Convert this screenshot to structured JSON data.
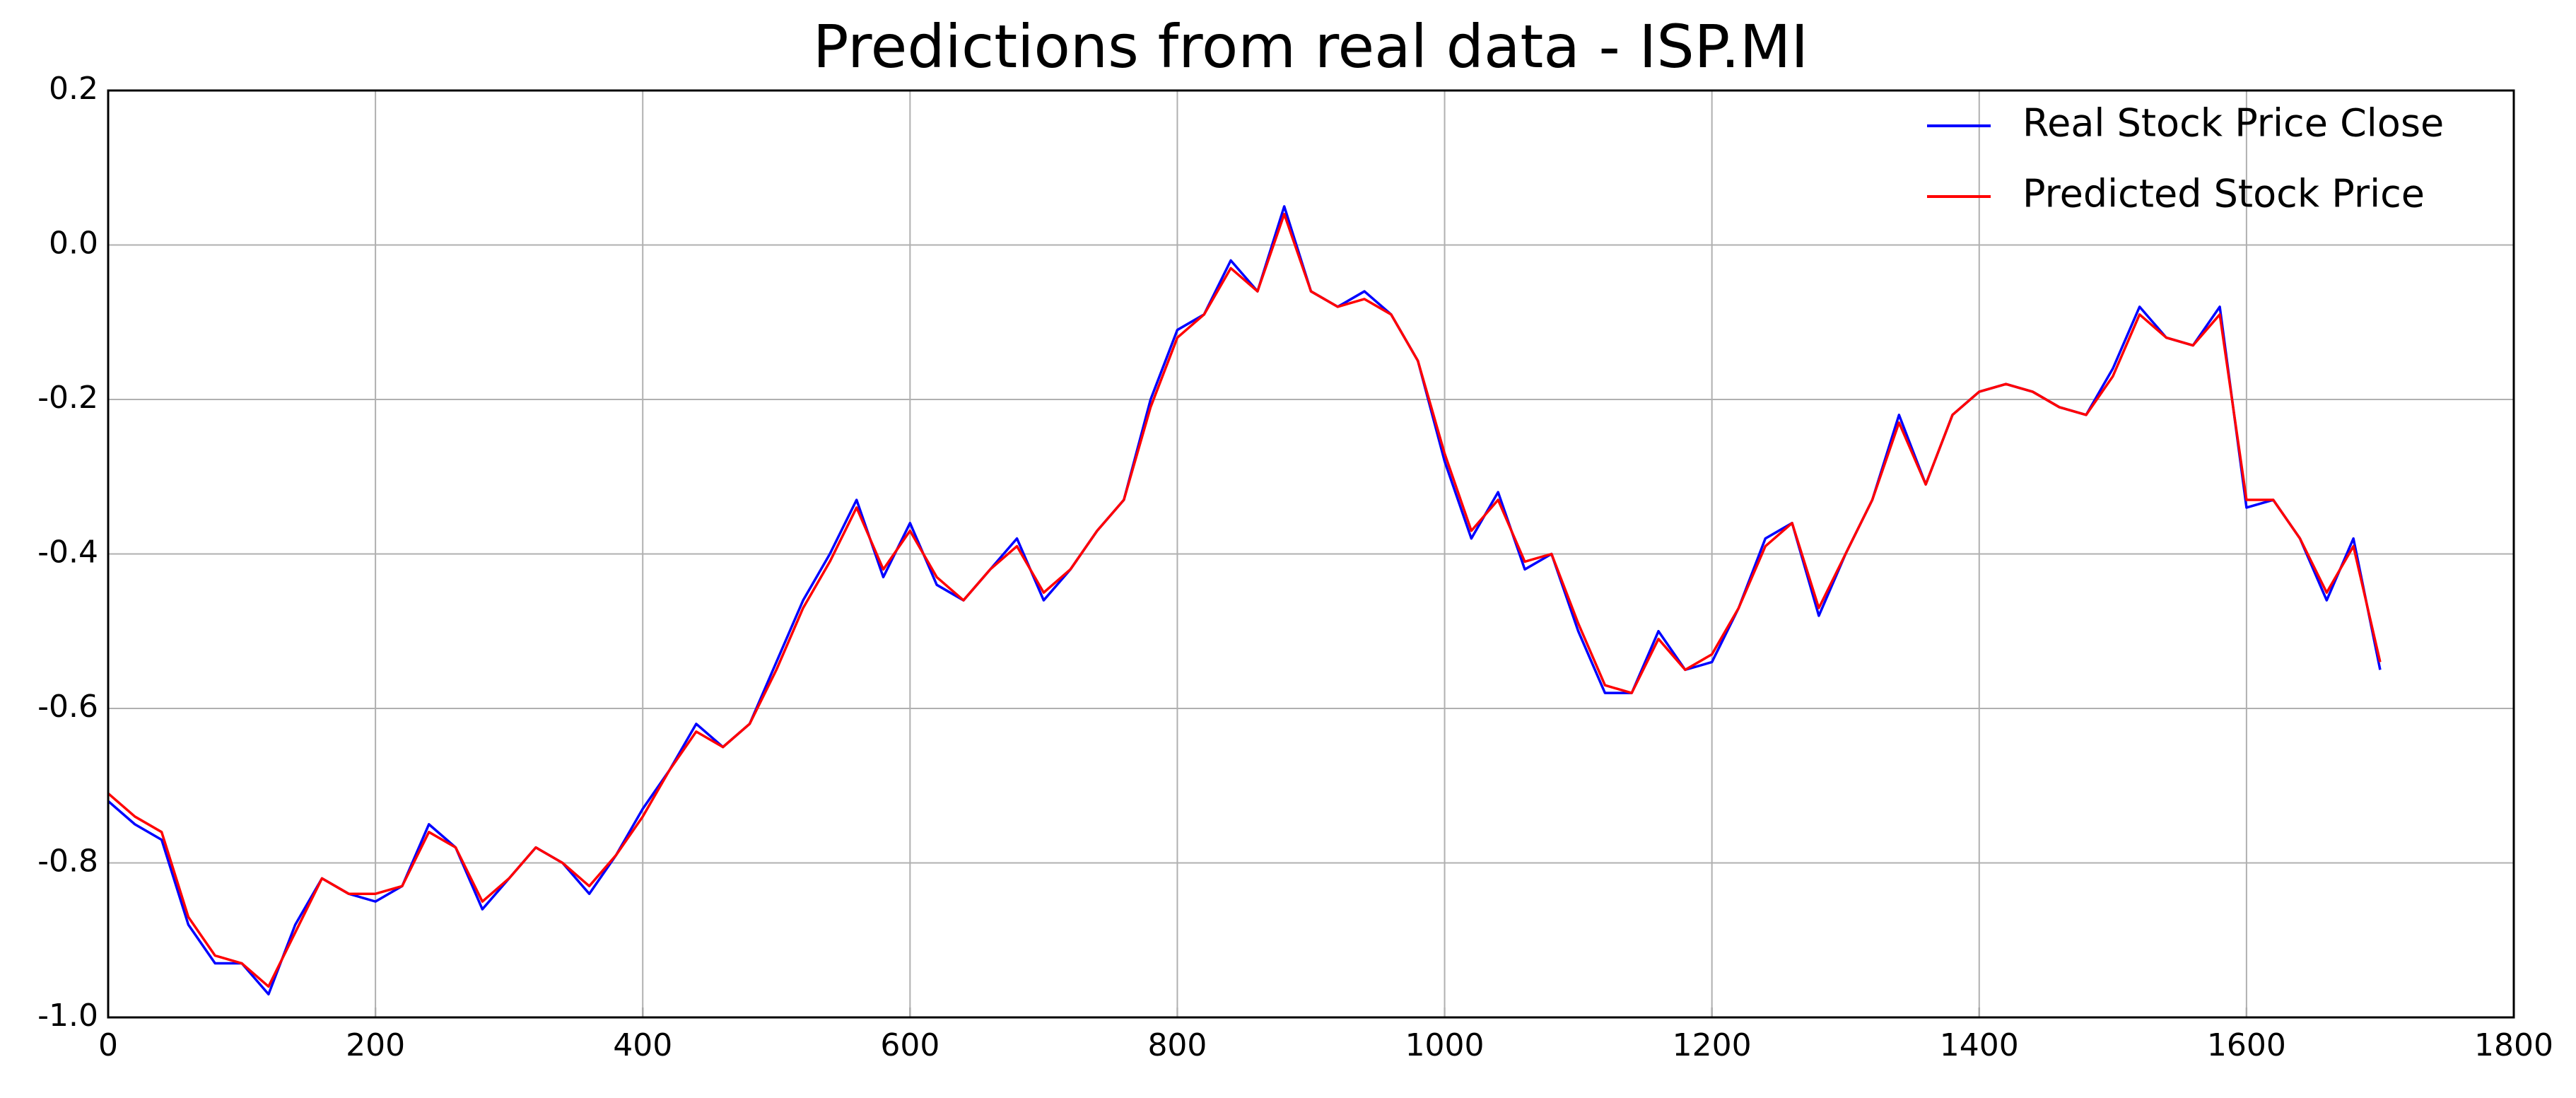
{
  "chart_data": {
    "type": "line",
    "title": "Predictions from real data - ISP.MI",
    "x": [
      0,
      20,
      40,
      60,
      80,
      100,
      120,
      140,
      160,
      180,
      200,
      220,
      240,
      260,
      280,
      300,
      320,
      340,
      360,
      380,
      400,
      420,
      440,
      460,
      480,
      500,
      520,
      540,
      560,
      580,
      600,
      620,
      640,
      660,
      680,
      700,
      720,
      740,
      760,
      780,
      800,
      820,
      840,
      860,
      880,
      900,
      920,
      940,
      960,
      980,
      1000,
      1020,
      1040,
      1060,
      1080,
      1100,
      1120,
      1140,
      1160,
      1180,
      1200,
      1220,
      1240,
      1260,
      1280,
      1300,
      1320,
      1340,
      1360,
      1380,
      1400,
      1420,
      1440,
      1460,
      1480,
      1500,
      1520,
      1540,
      1560,
      1580,
      1600,
      1620,
      1640,
      1660,
      1680,
      1700
    ],
    "series": [
      {
        "name": "Real Stock Price Close",
        "color": "#0000ff",
        "values": [
          -0.72,
          -0.75,
          -0.77,
          -0.88,
          -0.93,
          -0.93,
          -0.97,
          -0.88,
          -0.82,
          -0.84,
          -0.85,
          -0.83,
          -0.75,
          -0.78,
          -0.86,
          -0.82,
          -0.78,
          -0.8,
          -0.84,
          -0.79,
          -0.73,
          -0.68,
          -0.62,
          -0.65,
          -0.62,
          -0.54,
          -0.46,
          -0.4,
          -0.33,
          -0.43,
          -0.36,
          -0.44,
          -0.46,
          -0.42,
          -0.38,
          -0.46,
          -0.42,
          -0.37,
          -0.33,
          -0.2,
          -0.11,
          -0.09,
          -0.02,
          -0.06,
          0.05,
          -0.06,
          -0.08,
          -0.06,
          -0.09,
          -0.15,
          -0.28,
          -0.38,
          -0.32,
          -0.42,
          -0.4,
          -0.5,
          -0.58,
          -0.58,
          -0.5,
          -0.55,
          -0.54,
          -0.47,
          -0.38,
          -0.36,
          -0.48,
          -0.4,
          -0.33,
          -0.22,
          -0.31,
          -0.22,
          -0.19,
          -0.18,
          -0.19,
          -0.21,
          -0.22,
          -0.16,
          -0.08,
          -0.12,
          -0.13,
          -0.08,
          -0.34,
          -0.33,
          -0.38,
          -0.46,
          -0.38,
          -0.55
        ]
      },
      {
        "name": "Predicted Stock Price",
        "color": "#ff0000",
        "values": [
          -0.71,
          -0.74,
          -0.76,
          -0.87,
          -0.92,
          -0.93,
          -0.96,
          -0.89,
          -0.82,
          -0.84,
          -0.84,
          -0.83,
          -0.76,
          -0.78,
          -0.85,
          -0.82,
          -0.78,
          -0.8,
          -0.83,
          -0.79,
          -0.74,
          -0.68,
          -0.63,
          -0.65,
          -0.62,
          -0.55,
          -0.47,
          -0.41,
          -0.34,
          -0.42,
          -0.37,
          -0.43,
          -0.46,
          -0.42,
          -0.39,
          -0.45,
          -0.42,
          -0.37,
          -0.33,
          -0.21,
          -0.12,
          -0.09,
          -0.03,
          -0.06,
          0.04,
          -0.06,
          -0.08,
          -0.07,
          -0.09,
          -0.15,
          -0.27,
          -0.37,
          -0.33,
          -0.41,
          -0.4,
          -0.49,
          -0.57,
          -0.58,
          -0.51,
          -0.55,
          -0.53,
          -0.47,
          -0.39,
          -0.36,
          -0.47,
          -0.4,
          -0.33,
          -0.23,
          -0.31,
          -0.22,
          -0.19,
          -0.18,
          -0.19,
          -0.21,
          -0.22,
          -0.17,
          -0.09,
          -0.12,
          -0.13,
          -0.09,
          -0.33,
          -0.33,
          -0.38,
          -0.45,
          -0.39,
          -0.54
        ]
      }
    ],
    "xlim": [
      0,
      1800
    ],
    "xticks": [
      0,
      200,
      400,
      600,
      800,
      1000,
      1200,
      1400,
      1600,
      1800
    ],
    "ylim": [
      -1,
      0.2
    ],
    "yticks": [
      {
        "value": -1,
        "label": "-1.0"
      },
      -0.8,
      -0.6,
      -0.4,
      -0.2,
      {
        "value": 0,
        "label": "0.0"
      },
      0.2
    ],
    "grid": true,
    "legend": "upper right"
  }
}
